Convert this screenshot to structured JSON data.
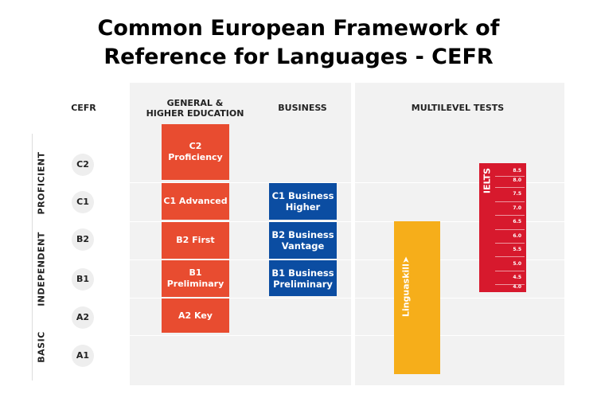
{
  "title_line1": "Common European Framework of",
  "title_line2": "Reference for Languages - CEFR",
  "headers": {
    "cefr": "CEFR",
    "general_line1": "GENERAL &",
    "general_line2": "HIGHER EDUCATION",
    "business": "BUSINESS",
    "multilevel": "MULTILEVEL TESTS"
  },
  "groups": {
    "proficient": "PROFICIENT",
    "independent": "INDEPENDENT",
    "basic": "BASIC"
  },
  "levels": [
    "C2",
    "C1",
    "B2",
    "B1",
    "A2",
    "A1"
  ],
  "general": [
    "C2 Proficiency",
    "C1 Advanced",
    "B2 First",
    "B1 Preliminary",
    "A2 Key"
  ],
  "business": [
    {
      "line1": "C1 Business",
      "line2": "Higher"
    },
    {
      "line1": "B2 Business",
      "line2": "Vantage"
    },
    {
      "line1": "B1 Business",
      "line2": "Preliminary"
    }
  ],
  "linguaskill": "Linguaskill",
  "ielts": {
    "label": "IELTS",
    "bands": [
      "8.5",
      "8.0",
      "7.5",
      "7.0",
      "6.5",
      "6.0",
      "5.5",
      "5.0",
      "4.5",
      "4.0"
    ]
  },
  "colors": {
    "general": "#e84c30",
    "business": "#0b4da2",
    "linguaskill": "#f6ae1a",
    "ielts": "#d7192d"
  }
}
